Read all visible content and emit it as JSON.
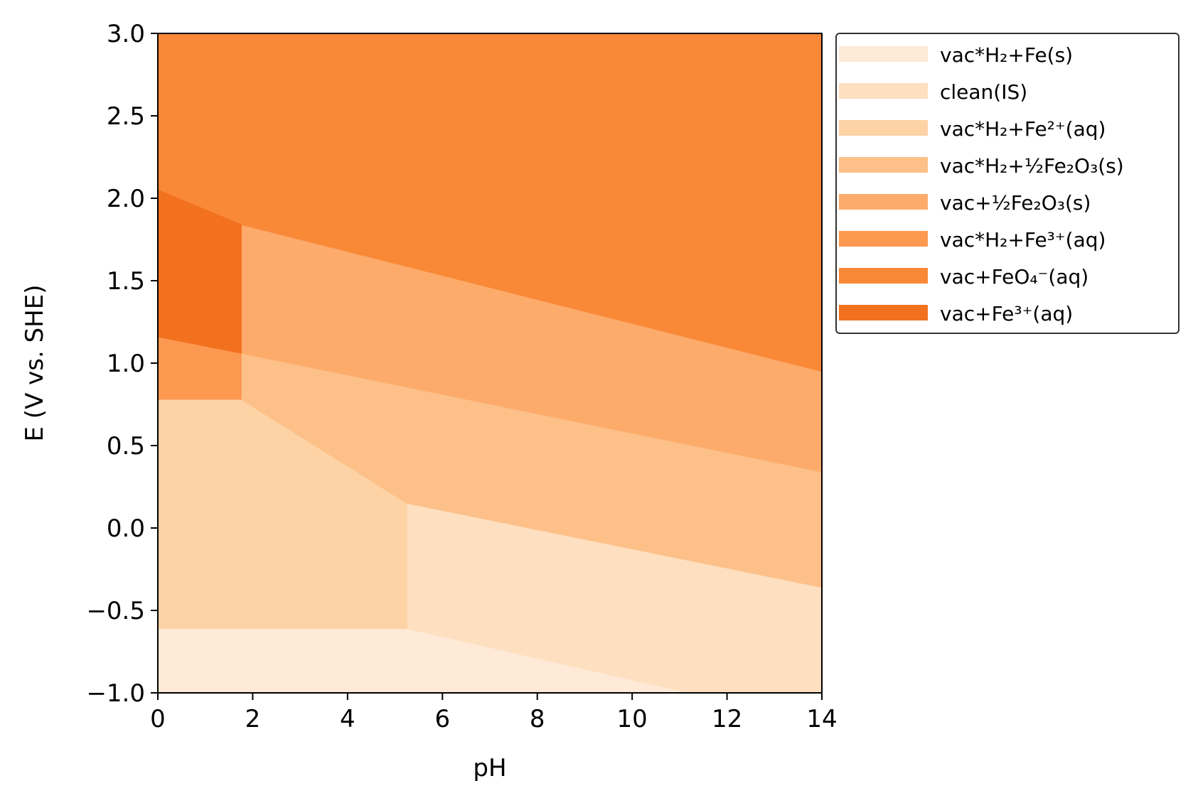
{
  "chart_data": {
    "type": "area",
    "title": "",
    "xlabel": "pH",
    "ylabel": "E (V vs. SHE)",
    "xlim": [
      0,
      14
    ],
    "ylim": [
      -1.0,
      3.0
    ],
    "xticks": [
      0,
      2,
      4,
      6,
      8,
      10,
      12,
      14
    ],
    "xtick_labels": [
      "0",
      "2",
      "4",
      "6",
      "8",
      "10",
      "12",
      "14"
    ],
    "yticks": [
      -1.0,
      -0.5,
      0.0,
      0.5,
      1.0,
      1.5,
      2.0,
      2.5,
      3.0
    ],
    "ytick_labels": [
      "−1.0",
      "−0.5",
      "0.0",
      "0.5",
      "1.0",
      "1.5",
      "2.0",
      "2.5",
      "3.0"
    ],
    "grid": false,
    "legend_position": "outside-right-top",
    "regions": [
      {
        "name": "vac*H₂+Fe(s)",
        "color": "#feead6",
        "polygon": [
          [
            0,
            -1.0
          ],
          [
            14,
            -1.0
          ],
          [
            11.2,
            -1.0
          ],
          [
            5.25,
            -0.61
          ],
          [
            0,
            -0.61
          ]
        ]
      },
      {
        "name": "clean(IS)",
        "color": "#fedfc0",
        "polygon": [
          [
            5.25,
            -0.61
          ],
          [
            11.2,
            -1.0
          ],
          [
            14,
            -1.0
          ],
          [
            14,
            -0.36
          ],
          [
            5.25,
            0.15
          ]
        ]
      },
      {
        "name": "vac*H₂+Fe²⁺(aq)",
        "color": "#fdd2a5",
        "polygon": [
          [
            0,
            -0.61
          ],
          [
            5.25,
            -0.61
          ],
          [
            5.25,
            0.15
          ],
          [
            1.76,
            0.78
          ],
          [
            0,
            0.78
          ]
        ]
      },
      {
        "name": "vac*H₂+½Fe₂O₃(s)",
        "color": "#fdc088",
        "polygon": [
          [
            1.76,
            0.78
          ],
          [
            5.25,
            0.15
          ],
          [
            14,
            -0.36
          ],
          [
            14,
            0.34
          ],
          [
            1.76,
            1.06
          ]
        ]
      },
      {
        "name": "vac+½Fe₂O₃(s)",
        "color": "#fcab6b",
        "polygon": [
          [
            1.76,
            1.06
          ],
          [
            14,
            0.34
          ],
          [
            14,
            0.95
          ],
          [
            1.76,
            1.84
          ]
        ]
      },
      {
        "name": "vac*H₂+Fe³⁺(aq)",
        "color": "#fc9850",
        "polygon": [
          [
            0,
            0.78
          ],
          [
            1.76,
            0.78
          ],
          [
            1.76,
            1.06
          ],
          [
            0,
            1.16
          ]
        ]
      },
      {
        "name": "vac+FeO₄⁻(aq)",
        "color": "#f98837",
        "polygon": [
          [
            0,
            2.05
          ],
          [
            1.76,
            1.84
          ],
          [
            14,
            0.95
          ],
          [
            14,
            3.0
          ],
          [
            0,
            3.0
          ]
        ]
      },
      {
        "name": "vac+Fe³⁺(aq)",
        "color": "#f1711f",
        "polygon": [
          [
            0,
            1.16
          ],
          [
            1.76,
            1.06
          ],
          [
            1.76,
            1.84
          ],
          [
            0,
            2.05
          ]
        ]
      }
    ]
  }
}
